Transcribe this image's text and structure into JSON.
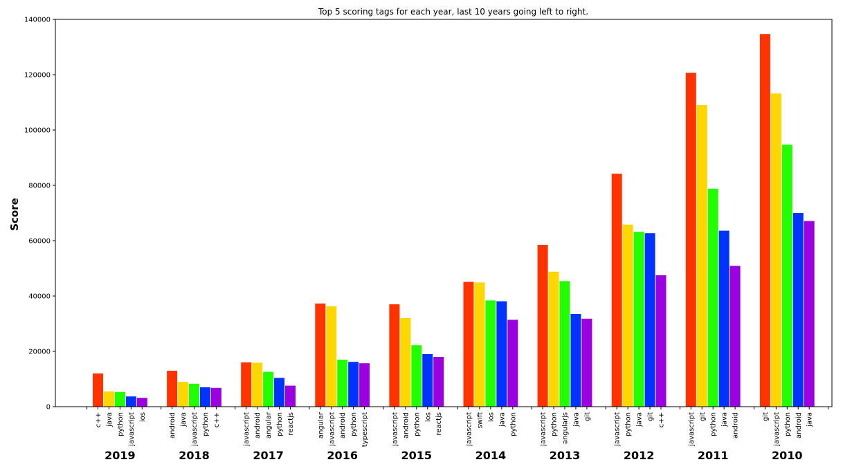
{
  "chart_data": {
    "type": "bar",
    "title": "Top 5 scoring tags for each year, last 10 years going left to right.",
    "xlabel": "",
    "ylabel": "Score",
    "ylim": [
      0,
      140000
    ],
    "yticks": [
      0,
      20000,
      40000,
      60000,
      80000,
      100000,
      120000,
      140000
    ],
    "grid": false,
    "rank_colors": [
      "#ff3300",
      "#ffd700",
      "#22ff00",
      "#0033ff",
      "#9b00e0"
    ],
    "groups": [
      {
        "year": "2019",
        "tags": [
          "c++",
          "java",
          "python",
          "javascript",
          "ios"
        ],
        "values": [
          12000,
          5500,
          5300,
          3700,
          3200
        ]
      },
      {
        "year": "2018",
        "tags": [
          "android",
          "java",
          "javascript",
          "python",
          "c++"
        ],
        "values": [
          13000,
          9000,
          8300,
          7000,
          6800
        ]
      },
      {
        "year": "2017",
        "tags": [
          "javascript",
          "android",
          "angular",
          "python",
          "reactjs"
        ],
        "values": [
          16000,
          15900,
          12600,
          10400,
          7600
        ]
      },
      {
        "year": "2016",
        "tags": [
          "angular",
          "javascript",
          "android",
          "python",
          "typescript"
        ],
        "values": [
          37300,
          36300,
          17000,
          16200,
          15700
        ]
      },
      {
        "year": "2015",
        "tags": [
          "javascript",
          "android",
          "python",
          "ios",
          "reactjs"
        ],
        "values": [
          37000,
          32000,
          22200,
          19000,
          18000
        ]
      },
      {
        "year": "2014",
        "tags": [
          "javascript",
          "swift",
          "ios",
          "java",
          "python"
        ],
        "values": [
          45100,
          44900,
          38400,
          38100,
          31400
        ]
      },
      {
        "year": "2013",
        "tags": [
          "javascript",
          "python",
          "angularjs",
          "java",
          "git"
        ],
        "values": [
          58500,
          48800,
          45400,
          33500,
          31800
        ]
      },
      {
        "year": "2012",
        "tags": [
          "javascript",
          "python",
          "java",
          "git",
          "c++"
        ],
        "values": [
          84200,
          65800,
          63200,
          62700,
          47500
        ]
      },
      {
        "year": "2011",
        "tags": [
          "javascript",
          "git",
          "python",
          "java",
          "android"
        ],
        "values": [
          120700,
          109000,
          78800,
          63600,
          50900
        ]
      },
      {
        "year": "2010",
        "tags": [
          "git",
          "javascript",
          "python",
          "android",
          "java"
        ],
        "values": [
          134700,
          113200,
          94700,
          70000,
          67100
        ]
      }
    ]
  }
}
